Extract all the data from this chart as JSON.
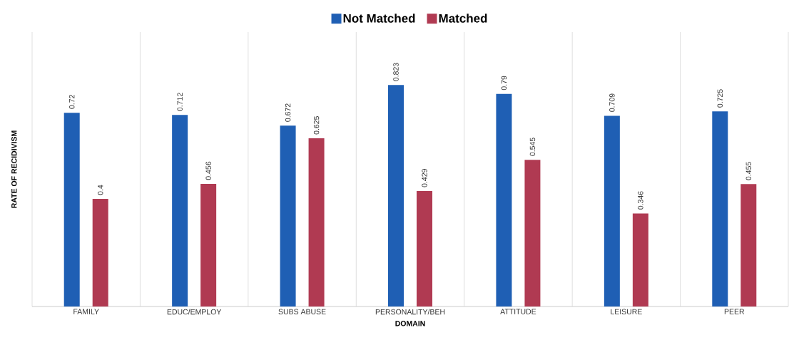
{
  "chart_data": {
    "type": "bar",
    "xlabel": "DOMAIN",
    "ylabel": "RATE OF RECIDIVISM",
    "categories": [
      "FAMILY",
      "EDUC/EMPLOY",
      "SUBS ABUSE",
      "PERSONALITY/BEH",
      "ATTITUDE",
      "LEISURE",
      "PEER"
    ],
    "series": [
      {
        "name": "Not Matched",
        "color": "#1f5fb4",
        "values": [
          0.72,
          0.712,
          0.672,
          0.823,
          0.79,
          0.709,
          0.725
        ]
      },
      {
        "name": "Matched",
        "color": "#b03a52",
        "values": [
          0.4,
          0.456,
          0.625,
          0.429,
          0.545,
          0.346,
          0.455
        ]
      }
    ],
    "ylim": [
      0,
      1.02
    ],
    "data_labels": true,
    "legend": "top",
    "grid": "x"
  }
}
